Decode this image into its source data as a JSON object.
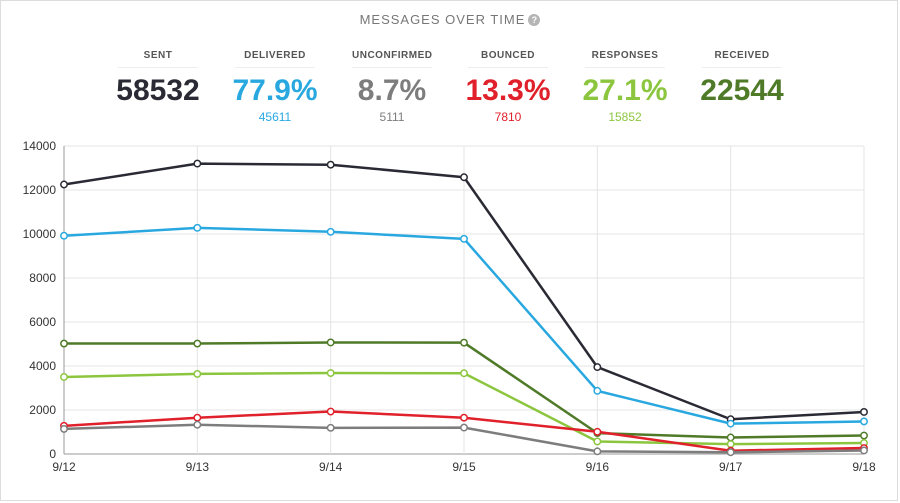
{
  "header": {
    "title": "MESSAGES OVER TIME"
  },
  "stats": [
    {
      "label": "SENT",
      "value": "58532",
      "sub": "",
      "color": "#2a2a35"
    },
    {
      "label": "DELIVERED",
      "value": "77.9%",
      "sub": "45611",
      "color": "#29a8e0"
    },
    {
      "label": "UNCONFIRMED",
      "value": "8.7%",
      "sub": "5111",
      "color": "#7d7d7d"
    },
    {
      "label": "BOUNCED",
      "value": "13.3%",
      "sub": "7810",
      "color": "#e0202a"
    },
    {
      "label": "RESPONSES",
      "value": "27.1%",
      "sub": "15852",
      "color": "#8cc63f"
    },
    {
      "label": "RECEIVED",
      "value": "22544",
      "sub": "",
      "color": "#4f7a28"
    }
  ],
  "chart_data": {
    "type": "line",
    "x": [
      "9/12",
      "9/13",
      "9/14",
      "9/15",
      "9/16",
      "9/17",
      "9/18"
    ],
    "ylim": [
      0,
      14000
    ],
    "yticks": [
      "0",
      "2000",
      "4000",
      "6000",
      "8000",
      "10000",
      "12000",
      "14000"
    ],
    "grid": true,
    "series": [
      {
        "key": "sent",
        "color": "#2a2a35",
        "values": [
          12250,
          13200,
          13150,
          12580,
          3950,
          1580,
          1910
        ]
      },
      {
        "key": "delivered",
        "color": "#29a8e0",
        "values": [
          9920,
          10280,
          10100,
          9780,
          2870,
          1380,
          1480
        ]
      },
      {
        "key": "received",
        "color": "#4f7a28",
        "values": [
          5020,
          5020,
          5070,
          5060,
          950,
          750,
          840
        ]
      },
      {
        "key": "responses",
        "color": "#8cc63f",
        "values": [
          3500,
          3640,
          3680,
          3670,
          570,
          450,
          500
        ]
      },
      {
        "key": "bounced",
        "color": "#e0202a",
        "values": [
          1280,
          1650,
          1930,
          1650,
          1010,
          150,
          270
        ]
      },
      {
        "key": "unconfirmed",
        "color": "#7d7d7d",
        "values": [
          1140,
          1330,
          1190,
          1200,
          120,
          80,
          160
        ]
      }
    ]
  }
}
